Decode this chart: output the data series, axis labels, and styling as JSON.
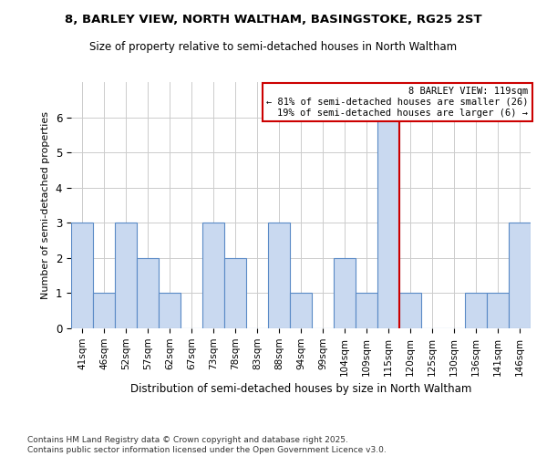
{
  "title": "8, BARLEY VIEW, NORTH WALTHAM, BASINGSTOKE, RG25 2ST",
  "subtitle": "Size of property relative to semi-detached houses in North Waltham",
  "xlabel": "Distribution of semi-detached houses by size in North Waltham",
  "ylabel": "Number of semi-detached properties",
  "footnote1": "Contains HM Land Registry data © Crown copyright and database right 2025.",
  "footnote2": "Contains public sector information licensed under the Open Government Licence v3.0.",
  "bar_labels": [
    "41sqm",
    "46sqm",
    "52sqm",
    "57sqm",
    "62sqm",
    "67sqm",
    "73sqm",
    "78sqm",
    "83sqm",
    "88sqm",
    "94sqm",
    "99sqm",
    "104sqm",
    "109sqm",
    "115sqm",
    "120sqm",
    "125sqm",
    "130sqm",
    "136sqm",
    "141sqm",
    "146sqm"
  ],
  "bar_values": [
    3,
    1,
    3,
    2,
    1,
    0,
    3,
    2,
    0,
    3,
    1,
    0,
    2,
    1,
    6,
    1,
    0,
    0,
    1,
    1,
    3
  ],
  "bar_color": "#c9d9f0",
  "bar_edge_color": "#5a8ac6",
  "property_line_index": 14,
  "property_line_color": "#cc0000",
  "ylim": [
    0,
    7
  ],
  "yticks": [
    0,
    1,
    2,
    3,
    4,
    5,
    6
  ],
  "annotation_title": "8 BARLEY VIEW: 119sqm",
  "annotation_line1": "← 81% of semi-detached houses are smaller (26)",
  "annotation_line2": "19% of semi-detached houses are larger (6) →",
  "annotation_box_color": "#cc0000",
  "background_color": "#ffffff",
  "grid_color": "#cccccc"
}
